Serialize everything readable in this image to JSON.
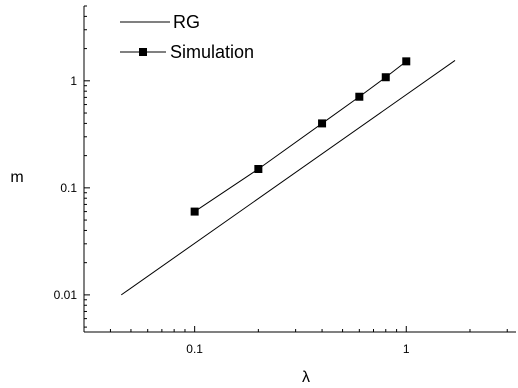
{
  "chart_data": {
    "type": "line",
    "xlabel": "λ",
    "ylabel": "m",
    "x_scale": "log",
    "y_scale": "log",
    "xlim": [
      0.03,
      3.3
    ],
    "ylim": [
      0.0045,
      5
    ],
    "x_ticks": [
      {
        "value": 0.1,
        "label": "0.1"
      },
      {
        "value": 1,
        "label": "1"
      }
    ],
    "y_ticks": [
      {
        "value": 0.01,
        "label": "0.01"
      },
      {
        "value": 0.1,
        "label": "0.1"
      },
      {
        "value": 1,
        "label": "1"
      }
    ],
    "legend_position": "top-left",
    "grid": false,
    "series": [
      {
        "name": "RG",
        "style": "line",
        "x": [
          0.045,
          1.7
        ],
        "y": [
          0.01,
          1.55
        ]
      },
      {
        "name": "Simulation",
        "style": "line-markers",
        "marker": "square",
        "x": [
          0.1,
          0.2,
          0.4,
          0.6,
          0.8,
          1.0
        ],
        "y": [
          0.06,
          0.15,
          0.4,
          0.71,
          1.08,
          1.52
        ]
      }
    ]
  }
}
